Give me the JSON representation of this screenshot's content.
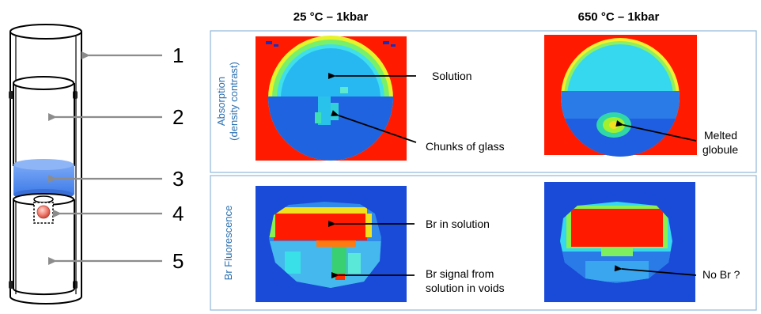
{
  "columns": {
    "left_heading": "25 °C – 1kbar",
    "right_heading": "650 °C – 1kbar"
  },
  "rows": {
    "absorption_label_line1": "Absorption",
    "absorption_label_line2": "(density contrast)",
    "fluorescence_label": "Br Fluorescence"
  },
  "cell_numbers": [
    "1",
    "2",
    "3",
    "4",
    "5"
  ],
  "annotations": {
    "solution": "Solution",
    "chunks_of_glass": "Chunks of glass",
    "melted_line1": "Melted",
    "melted_line2": "globule",
    "br_in_solution": "Br in solution",
    "br_signal_line1": "Br signal from",
    "br_signal_line2": "solution in voids",
    "no_br": "No Br ?"
  },
  "colors": {
    "panel_border": "#8fb8d8",
    "row_label": "#2a6fb0",
    "arrow_grey": "#8c8c8c",
    "window_blue": "#5b8ff0",
    "map_red": "#ff1a00",
    "map_blue": "#1a4ad8"
  }
}
